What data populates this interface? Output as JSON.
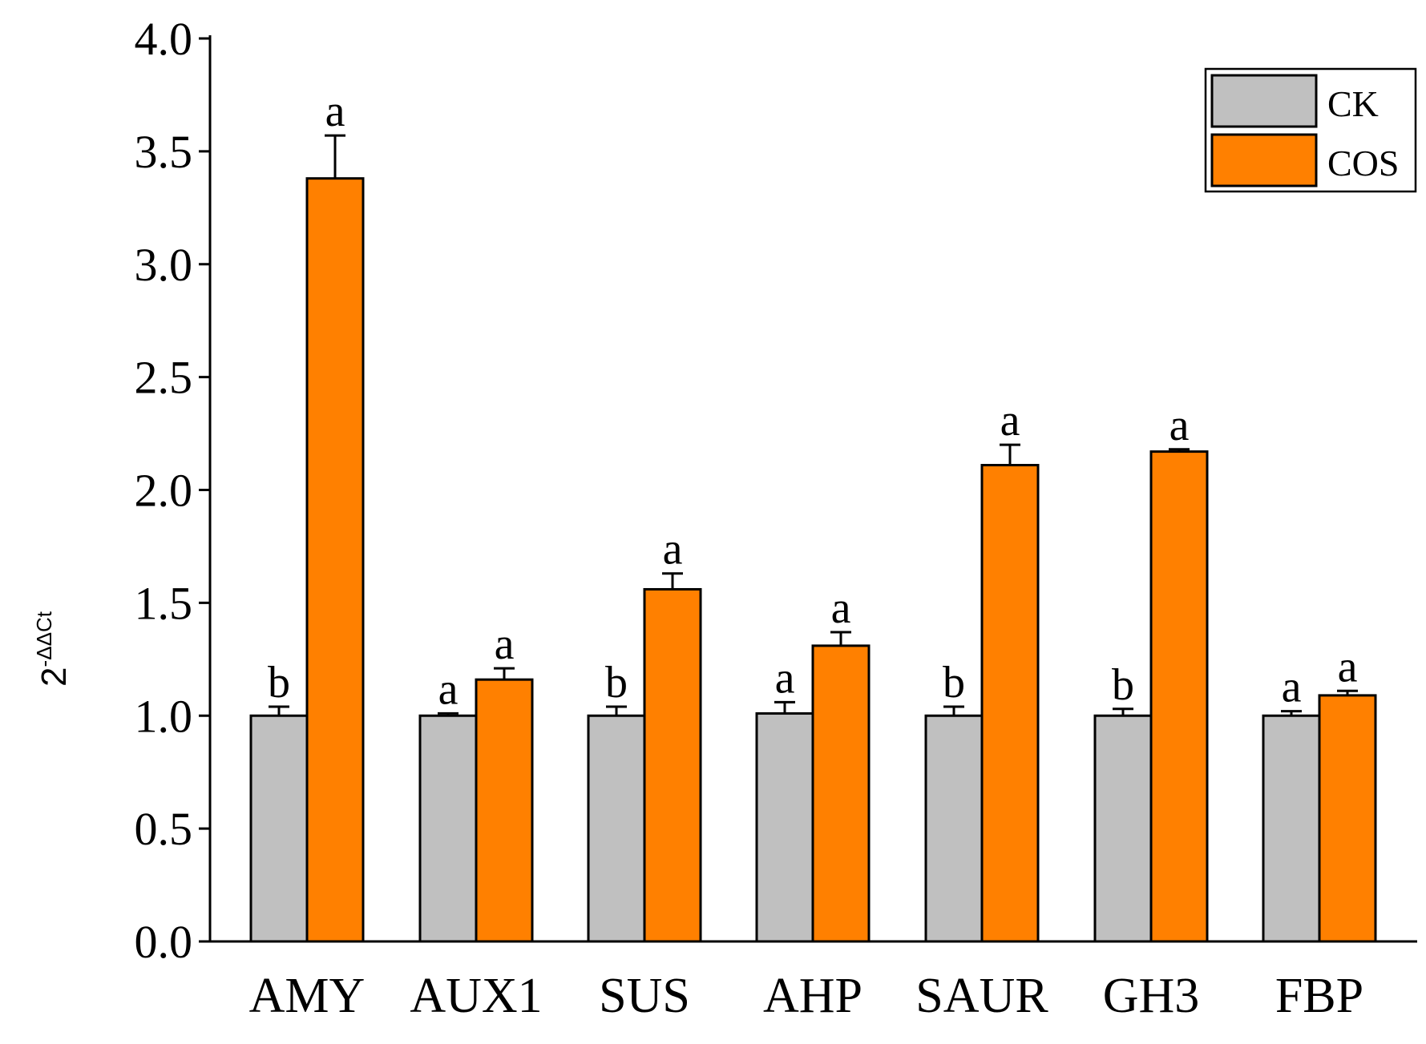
{
  "chart_data": {
    "type": "bar",
    "categories": [
      "AMY",
      "AUX1",
      "SUS",
      "AHP",
      "SAUR",
      "GH3",
      "FBP"
    ],
    "series": [
      {
        "name": "CK",
        "color": "#c0c0c0",
        "values": [
          1.0,
          1.0,
          1.0,
          1.01,
          1.0,
          1.0,
          1.0
        ],
        "errors": [
          0.04,
          0.01,
          0.04,
          0.05,
          0.04,
          0.03,
          0.02
        ],
        "letters": [
          "b",
          "a",
          "b",
          "a",
          "b",
          "b",
          "a"
        ]
      },
      {
        "name": "COS",
        "color": "#ff8000",
        "values": [
          3.38,
          1.16,
          1.56,
          1.31,
          2.11,
          2.17,
          1.09
        ],
        "errors": [
          0.19,
          0.05,
          0.07,
          0.06,
          0.09,
          0.01,
          0.02
        ],
        "letters": [
          "a",
          "a",
          "a",
          "a",
          "a",
          "a",
          "a"
        ]
      }
    ],
    "ylim": [
      0,
      4.0
    ],
    "yticks": [
      "0.0",
      "0.5",
      "1.0",
      "1.5",
      "2.0",
      "2.5",
      "3.0",
      "3.5",
      "4.0"
    ],
    "ylabel": {
      "base": "2",
      "exponent": "-ΔΔCt"
    },
    "xlabel": "",
    "title": "",
    "legend": {
      "position": "top-right",
      "entries": [
        "CK",
        "COS"
      ]
    },
    "grid": false
  }
}
